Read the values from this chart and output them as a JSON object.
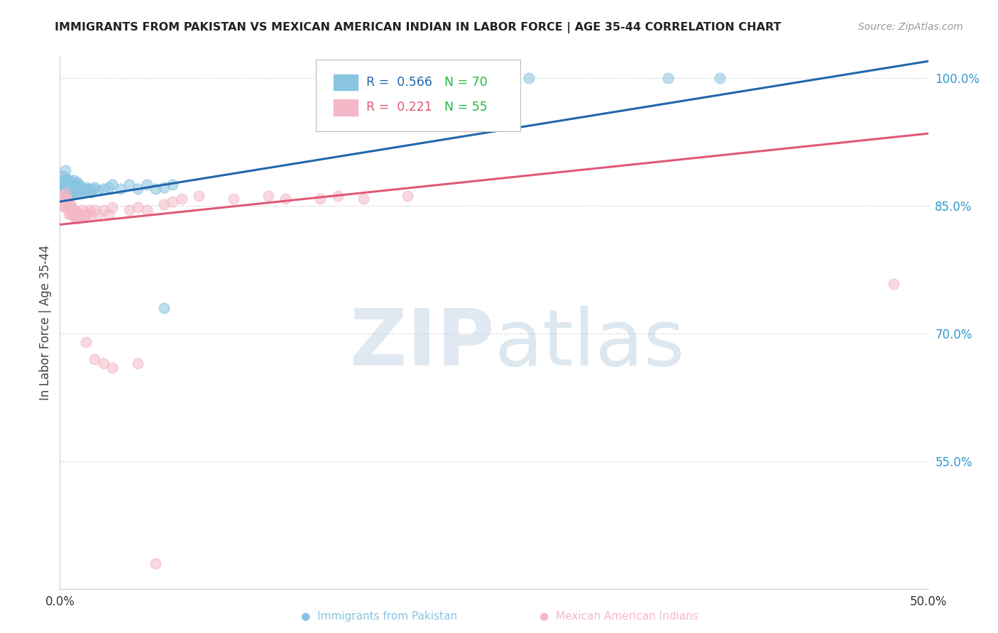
{
  "title": "IMMIGRANTS FROM PAKISTAN VS MEXICAN AMERICAN INDIAN IN LABOR FORCE | AGE 35-44 CORRELATION CHART",
  "source": "Source: ZipAtlas.com",
  "ylabel": "In Labor Force | Age 35-44",
  "x_min": 0.0,
  "x_max": 0.5,
  "y_min": 0.4,
  "y_max": 1.025,
  "y_ticks": [
    0.55,
    0.7,
    0.85,
    1.0
  ],
  "y_tick_labels": [
    "55.0%",
    "70.0%",
    "85.0%",
    "100.0%"
  ],
  "blue_R": 0.566,
  "blue_N": 70,
  "pink_R": 0.221,
  "pink_N": 55,
  "blue_color": "#89c4e1",
  "pink_color": "#f5b8c8",
  "blue_line_color": "#2166ac",
  "pink_line_color": "#e05878",
  "blue_line_x0": 0.0,
  "blue_line_y0": 0.855,
  "blue_line_x1": 0.5,
  "blue_line_y1": 1.02,
  "pink_line_x0": 0.0,
  "pink_line_y0": 0.828,
  "pink_line_x1": 0.5,
  "pink_line_y1": 0.935,
  "blue_x": [
    0.001,
    0.001,
    0.001,
    0.002,
    0.002,
    0.002,
    0.002,
    0.003,
    0.003,
    0.003,
    0.003,
    0.003,
    0.004,
    0.004,
    0.004,
    0.004,
    0.005,
    0.005,
    0.005,
    0.005,
    0.006,
    0.006,
    0.006,
    0.007,
    0.007,
    0.007,
    0.008,
    0.008,
    0.008,
    0.009,
    0.009,
    0.01,
    0.01,
    0.01,
    0.011,
    0.011,
    0.012,
    0.012,
    0.013,
    0.014,
    0.015,
    0.016,
    0.017,
    0.018,
    0.019,
    0.02,
    0.022,
    0.025,
    0.028,
    0.03,
    0.035,
    0.04,
    0.045,
    0.05,
    0.055,
    0.06,
    0.065,
    0.06,
    0.155,
    0.16,
    0.165,
    0.17,
    0.175,
    0.18,
    0.21,
    0.23,
    0.25,
    0.27,
    0.35,
    0.38
  ],
  "blue_y": [
    0.88,
    0.875,
    0.87,
    0.885,
    0.878,
    0.87,
    0.865,
    0.892,
    0.88,
    0.875,
    0.87,
    0.865,
    0.882,
    0.878,
    0.872,
    0.868,
    0.88,
    0.875,
    0.87,
    0.865,
    0.875,
    0.868,
    0.862,
    0.878,
    0.872,
    0.866,
    0.88,
    0.873,
    0.867,
    0.875,
    0.868,
    0.878,
    0.872,
    0.865,
    0.875,
    0.868,
    0.872,
    0.865,
    0.87,
    0.868,
    0.872,
    0.868,
    0.87,
    0.866,
    0.87,
    0.872,
    0.868,
    0.87,
    0.872,
    0.875,
    0.87,
    0.875,
    0.87,
    0.875,
    0.87,
    0.872,
    0.875,
    0.73,
    1.0,
    1.0,
    1.0,
    1.0,
    1.0,
    1.0,
    1.0,
    1.0,
    1.0,
    1.0,
    1.0,
    1.0
  ],
  "pink_x": [
    0.001,
    0.002,
    0.002,
    0.003,
    0.003,
    0.003,
    0.004,
    0.004,
    0.005,
    0.005,
    0.005,
    0.006,
    0.006,
    0.007,
    0.007,
    0.008,
    0.008,
    0.009,
    0.009,
    0.01,
    0.01,
    0.011,
    0.012,
    0.013,
    0.014,
    0.015,
    0.016,
    0.017,
    0.018,
    0.02,
    0.022,
    0.025,
    0.028,
    0.03,
    0.04,
    0.045,
    0.05,
    0.06,
    0.065,
    0.07,
    0.08,
    0.1,
    0.12,
    0.15,
    0.16,
    0.175,
    0.2,
    0.13,
    0.48,
    0.015,
    0.02,
    0.025,
    0.03,
    0.045,
    0.055
  ],
  "pink_y": [
    0.862,
    0.858,
    0.85,
    0.865,
    0.855,
    0.848,
    0.858,
    0.848,
    0.855,
    0.845,
    0.84,
    0.852,
    0.842,
    0.848,
    0.84,
    0.845,
    0.838,
    0.844,
    0.836,
    0.842,
    0.835,
    0.84,
    0.84,
    0.845,
    0.838,
    0.84,
    0.842,
    0.845,
    0.84,
    0.845,
    0.84,
    0.845,
    0.84,
    0.848,
    0.845,
    0.848,
    0.845,
    0.852,
    0.855,
    0.858,
    0.862,
    0.858,
    0.862,
    0.858,
    0.862,
    0.858,
    0.862,
    0.858,
    0.758,
    0.69,
    0.67,
    0.665,
    0.66,
    0.665,
    0.43
  ]
}
